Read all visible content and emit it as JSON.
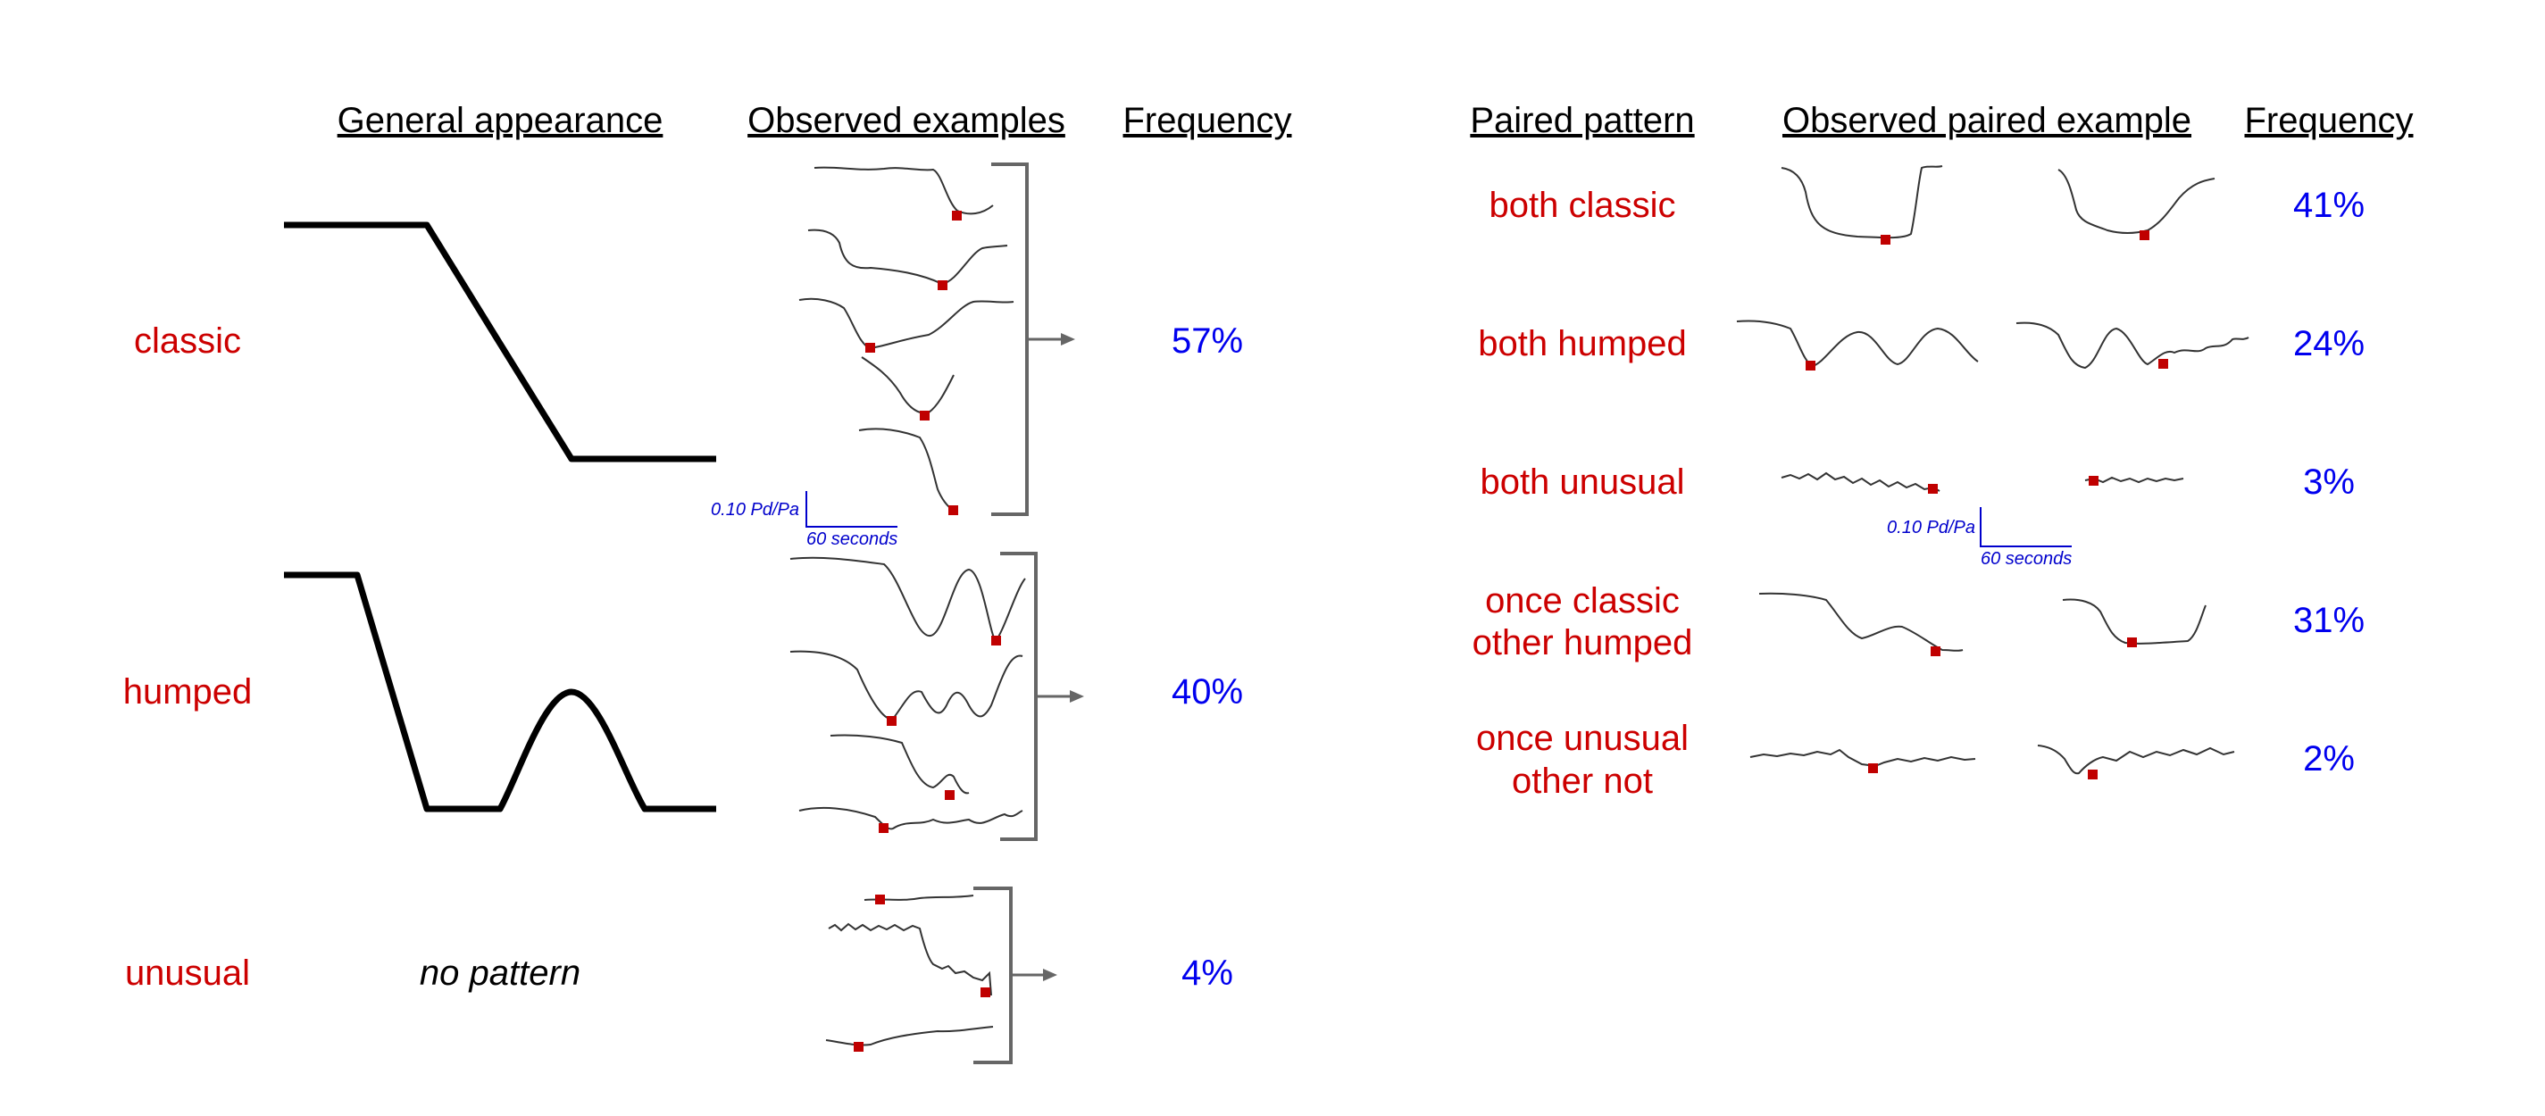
{
  "left": {
    "headers": {
      "general": "General appearance",
      "observed": "Observed examples",
      "frequency": "Frequency"
    },
    "rows": [
      {
        "category": "classic",
        "frequency": "57%"
      },
      {
        "category": "humped",
        "frequency": "40%"
      },
      {
        "category": "unusual",
        "frequency": "4%",
        "general_text": "no pattern"
      }
    ],
    "scale": {
      "y_label": "0.10 Pd/Pa",
      "x_label": "60 seconds"
    }
  },
  "right": {
    "headers": {
      "pattern": "Paired pattern",
      "example": "Observed paired example",
      "frequency": "Frequency"
    },
    "rows": [
      {
        "pattern_line1": "both classic",
        "pattern_line2": "",
        "frequency": "41%"
      },
      {
        "pattern_line1": "both humped",
        "pattern_line2": "",
        "frequency": "24%"
      },
      {
        "pattern_line1": "both unusual",
        "pattern_line2": "",
        "frequency": "3%"
      },
      {
        "pattern_line1": "once classic",
        "pattern_line2": "other humped",
        "frequency": "31%"
      },
      {
        "pattern_line1": "once unusual",
        "pattern_line2": "other not",
        "frequency": "2%"
      }
    ],
    "scale": {
      "y_label": "0.10 Pd/Pa",
      "x_label": "60 seconds"
    }
  },
  "colors": {
    "category": "#cc0000",
    "frequency": "#0000ee",
    "marker": "#c00000",
    "scale": "#0000cc"
  }
}
